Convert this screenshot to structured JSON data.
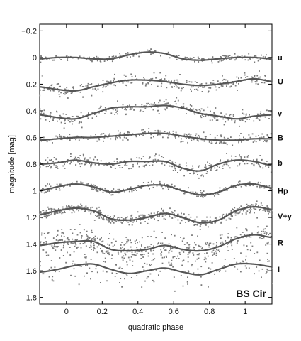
{
  "chart_data": {
    "type": "line",
    "title": "",
    "annotation": "BS Cir",
    "xlabel": "quadratic phase",
    "ylabel": "magnitude [mag]",
    "xlim": [
      -0.15,
      1.15
    ],
    "ylim": [
      -0.25,
      1.85
    ],
    "y_inverted": true,
    "grid": false,
    "x_ticks": [
      0,
      0.2,
      0.4,
      0.6,
      0.8,
      1
    ],
    "x_tick_labels": [
      "0",
      "0.2",
      "0.4",
      "0.6",
      "0.8",
      "1"
    ],
    "y_ticks": [
      -0.2,
      0,
      0.2,
      0.4,
      0.6,
      0.8,
      1,
      1.2,
      1.4,
      1.6,
      1.8
    ],
    "y_tick_labels": [
      "−0.2",
      "0",
      "0.2",
      "0.4",
      "0.6",
      "0.8",
      "1",
      "1.2",
      "1.4",
      "1.6",
      "1.8"
    ],
    "colors": {
      "fit_line": "#555555",
      "points": "#7a7a7a",
      "axis": "#000000"
    },
    "x": [
      -0.15,
      -0.05,
      0.05,
      0.15,
      0.25,
      0.35,
      0.45,
      0.55,
      0.65,
      0.75,
      0.85,
      0.95,
      1.05,
      1.15
    ],
    "series": [
      {
        "name": "u",
        "label_y": 0.0,
        "fit": [
          0.01,
          0.0,
          0.0,
          0.01,
          0.01,
          -0.02,
          -0.04,
          -0.03,
          0.01,
          0.02,
          0.01,
          0.0,
          0.0,
          0.01
        ],
        "scatter": 0.02,
        "point_density": 0.8
      },
      {
        "name": "U",
        "label_y": 0.18,
        "fit": [
          0.22,
          0.24,
          0.25,
          0.22,
          0.19,
          0.17,
          0.17,
          0.18,
          0.2,
          0.21,
          0.2,
          0.18,
          0.16,
          0.18
        ],
        "scatter": 0.04,
        "point_density": 1.0
      },
      {
        "name": "v",
        "label_y": 0.42,
        "fit": [
          0.43,
          0.45,
          0.46,
          0.42,
          0.38,
          0.37,
          0.37,
          0.36,
          0.38,
          0.42,
          0.44,
          0.46,
          0.44,
          0.43
        ],
        "scatter": 0.04,
        "point_density": 1.1
      },
      {
        "name": "B",
        "label_y": 0.6,
        "fit": [
          0.62,
          0.61,
          0.6,
          0.6,
          0.59,
          0.58,
          0.57,
          0.57,
          0.59,
          0.61,
          0.62,
          0.62,
          0.61,
          0.61
        ],
        "scatter": 0.03,
        "point_density": 1.0
      },
      {
        "name": "b",
        "label_y": 0.79,
        "fit": [
          0.8,
          0.79,
          0.77,
          0.79,
          0.8,
          0.78,
          0.78,
          0.78,
          0.83,
          0.85,
          0.8,
          0.77,
          0.78,
          0.81
        ],
        "scatter": 0.04,
        "point_density": 1.1
      },
      {
        "name": "Hp",
        "label_y": 1.0,
        "fit": [
          1.0,
          0.97,
          0.95,
          0.97,
          1.01,
          0.99,
          0.96,
          0.96,
          1.0,
          1.03,
          1.01,
          0.96,
          0.95,
          0.98
        ],
        "scatter": 0.02,
        "point_density": 1.0
      },
      {
        "name": "V+y",
        "label_y": 1.19,
        "fit": [
          1.18,
          1.15,
          1.13,
          1.15,
          1.21,
          1.22,
          1.2,
          1.17,
          1.2,
          1.24,
          1.22,
          1.15,
          1.12,
          1.14
        ],
        "scatter": 0.03,
        "point_density": 2.0
      },
      {
        "name": "R",
        "label_y": 1.39,
        "fit": [
          1.41,
          1.39,
          1.38,
          1.38,
          1.44,
          1.45,
          1.44,
          1.41,
          1.44,
          1.45,
          1.42,
          1.36,
          1.33,
          1.35
        ],
        "scatter": 0.08,
        "point_density": 1.8
      },
      {
        "name": "I",
        "label_y": 1.59,
        "fit": [
          1.61,
          1.59,
          1.56,
          1.55,
          1.59,
          1.62,
          1.6,
          1.58,
          1.61,
          1.63,
          1.59,
          1.55,
          1.55,
          1.57
        ],
        "scatter": 0.1,
        "point_density": 0.7
      }
    ]
  }
}
